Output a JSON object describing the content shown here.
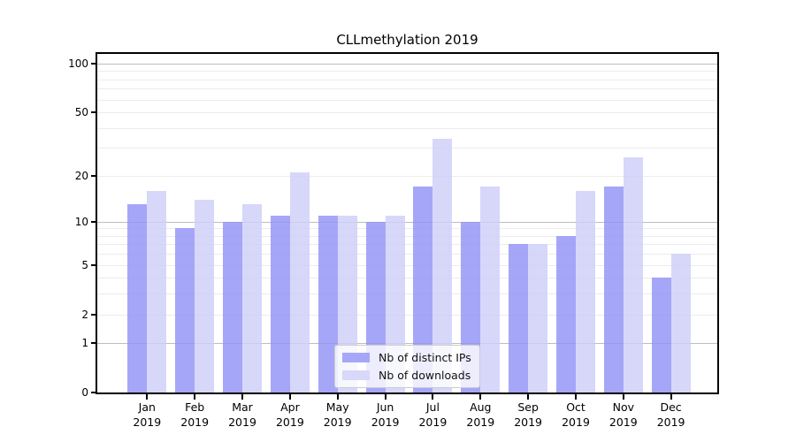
{
  "chart_data": {
    "type": "bar",
    "title": "CLLmethylation 2019",
    "categories": [
      "Jan 2019",
      "Feb 2019",
      "Mar 2019",
      "Apr 2019",
      "May 2019",
      "Jun 2019",
      "Jul 2019",
      "Aug 2019",
      "Sep 2019",
      "Oct 2019",
      "Nov 2019",
      "Dec 2019"
    ],
    "series": [
      {
        "name": "Nb of distinct IPs",
        "color": "#a7a7f8",
        "values": [
          13,
          9,
          10,
          11,
          11,
          10,
          17,
          10,
          7,
          8,
          17,
          4
        ]
      },
      {
        "name": "Nb of downloads",
        "color": "#d8d8fa",
        "values": [
          16,
          14,
          13,
          21,
          11,
          11,
          34,
          17,
          7,
          16,
          26,
          6
        ]
      }
    ],
    "xlabel": "",
    "ylabel": "",
    "yscale": "log1p",
    "ylim": [
      0,
      115
    ],
    "ytick_values": [
      0,
      1,
      2,
      5,
      10,
      20,
      50,
      100
    ],
    "gridlines_major": [
      1,
      10,
      100
    ],
    "gridlines_minor": [
      2,
      3,
      4,
      5,
      6,
      7,
      8,
      9,
      20,
      30,
      40,
      50,
      60,
      70,
      80,
      90
    ],
    "grid": "on",
    "legend_position": "lower center"
  }
}
